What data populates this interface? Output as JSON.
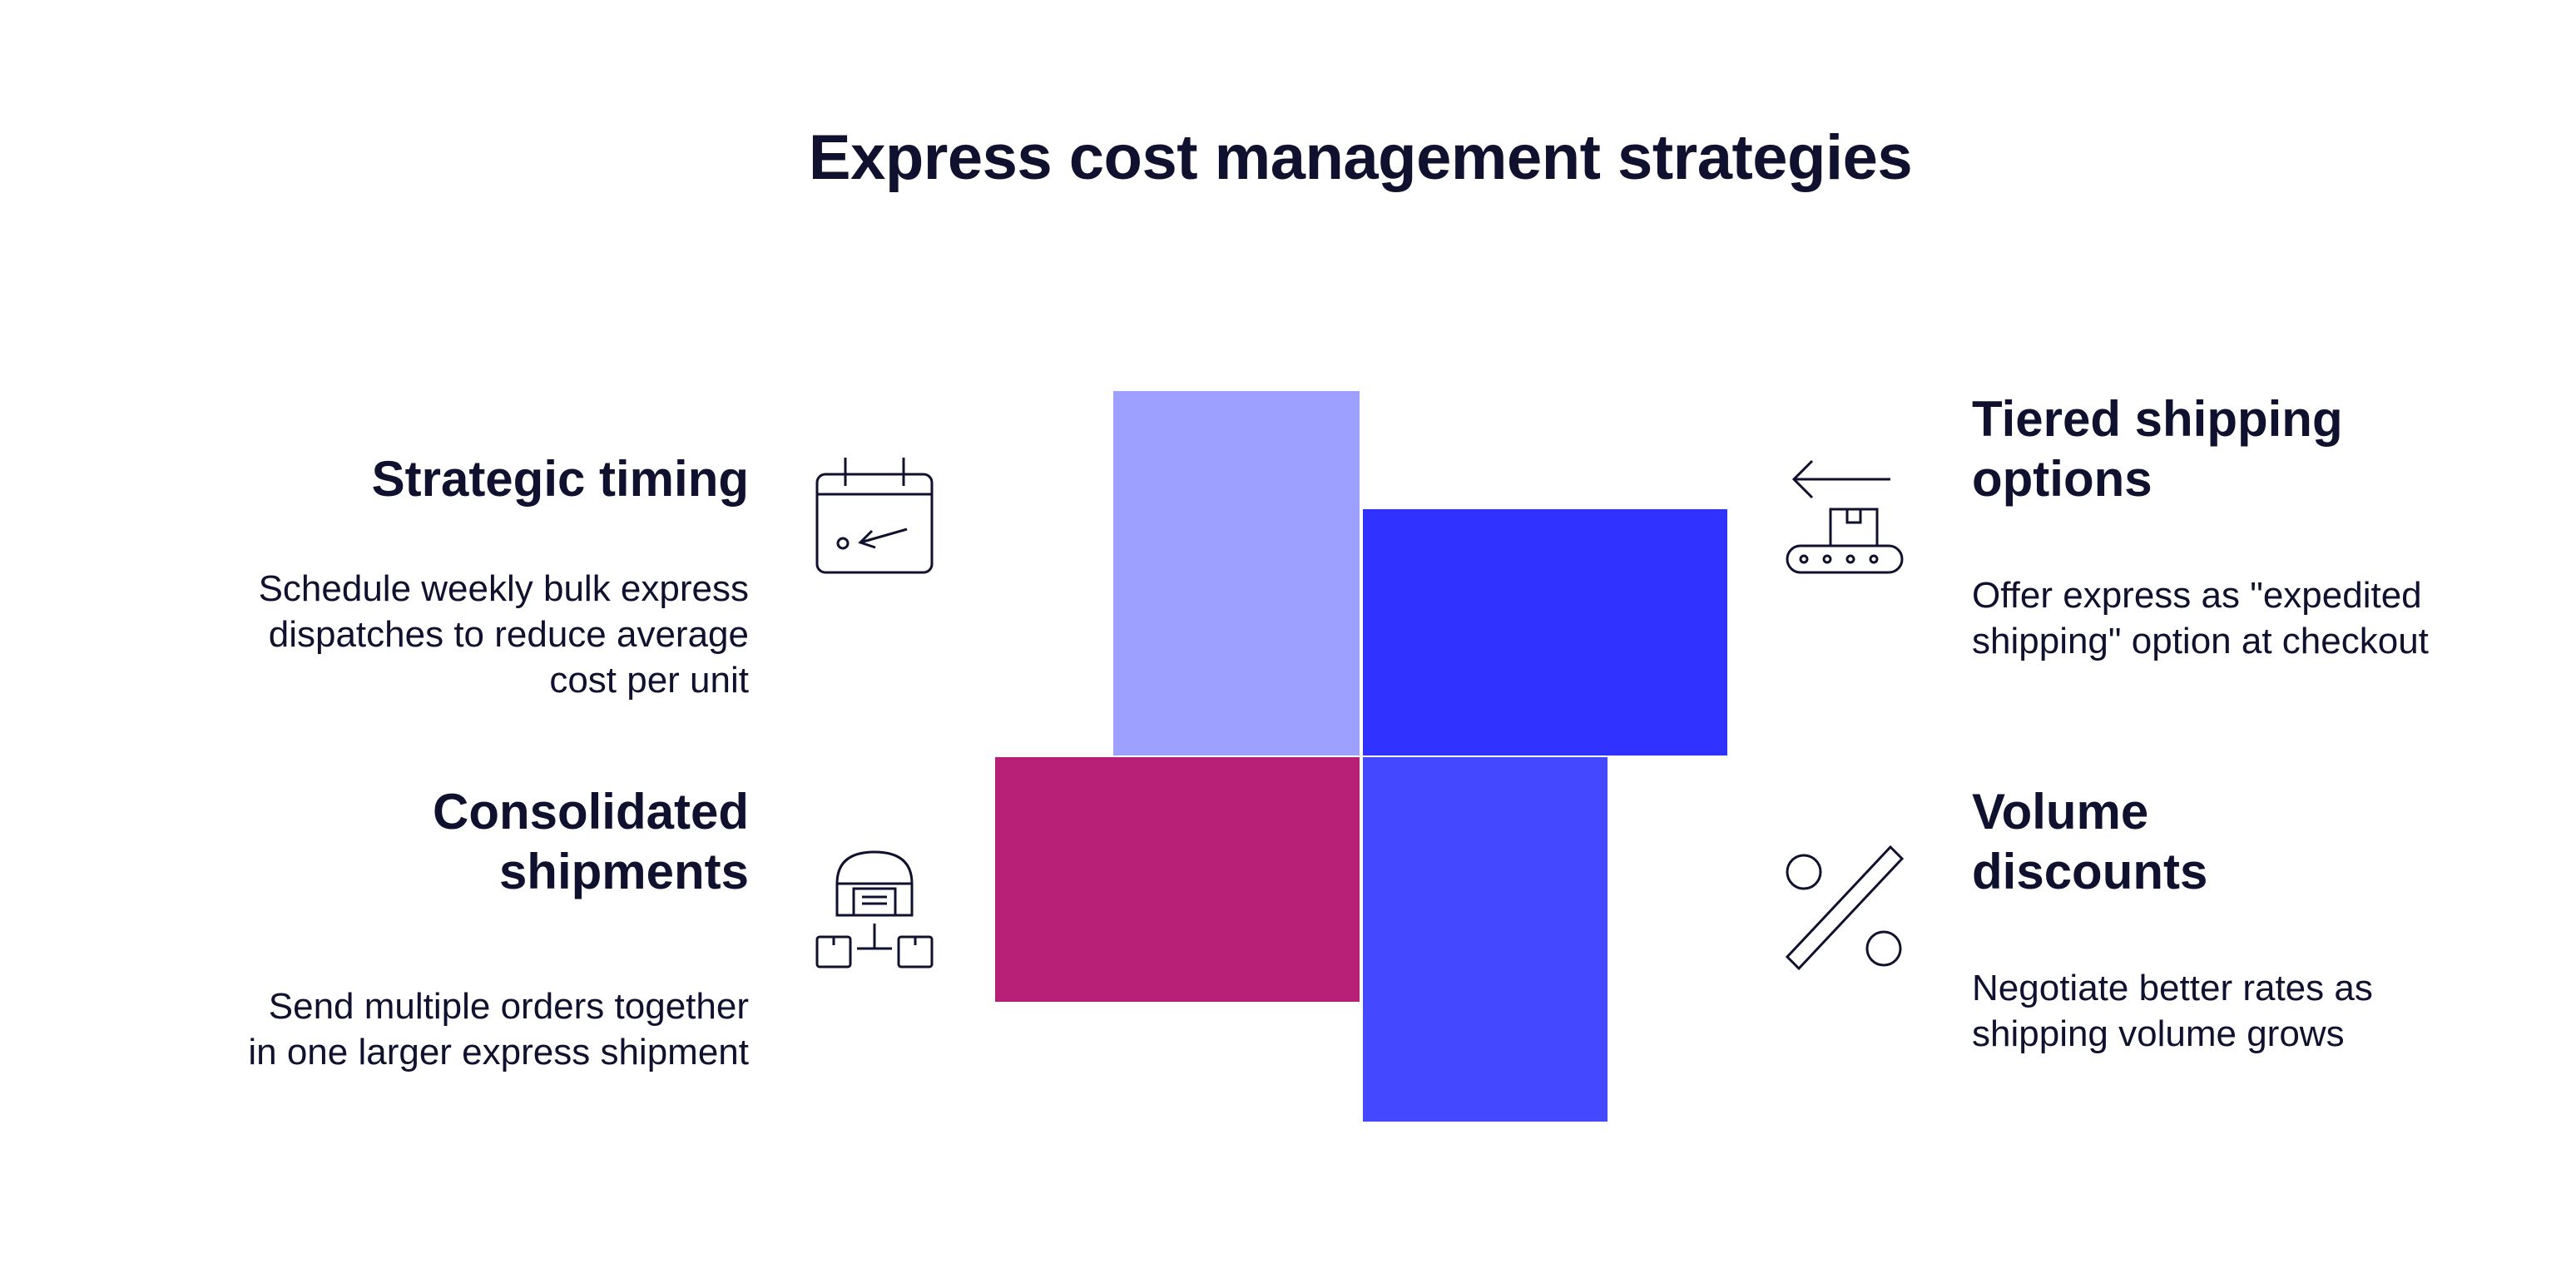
{
  "title": "Express cost management strategies",
  "strategies": [
    {
      "heading": "Strategic timing",
      "description_lines": [
        "Schedule weekly bulk express",
        "dispatches to reduce average",
        "cost per unit"
      ],
      "icon": "calendar-icon",
      "color": "#9da0ff"
    },
    {
      "heading_lines": [
        "Tiered shipping",
        "options"
      ],
      "description_lines": [
        "Offer express as \"expedited",
        "shipping\" option at checkout"
      ],
      "icon": "conveyor-arrow-icon",
      "color": "#3033ff"
    },
    {
      "heading_lines": [
        "Consolidated",
        "shipments"
      ],
      "description_lines": [
        "Send multiple orders together",
        "in one larger express shipment"
      ],
      "icon": "warehouse-network-icon",
      "color": "#b81f76"
    },
    {
      "heading_lines": [
        "Volume",
        "discounts"
      ],
      "description_lines": [
        "Negotiate better rates as",
        "shipping volume grows"
      ],
      "icon": "percent-icon",
      "color": "#4449ff"
    }
  ]
}
